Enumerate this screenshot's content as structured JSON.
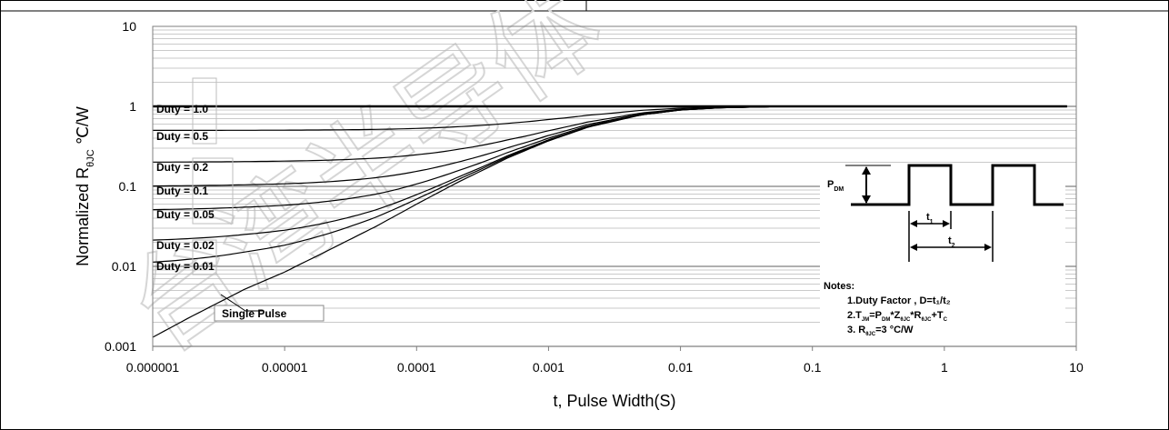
{
  "chart_data": {
    "type": "line",
    "xscale": "log",
    "yscale": "log",
    "xlim": [
      1e-06,
      10
    ],
    "ylim": [
      0.001,
      10
    ],
    "xlabel": "t, Pulse Width(S)",
    "ylabel_main": "Normalized R",
    "ylabel_sub": "θJC",
    "ylabel_unit": " ℃/W",
    "x_tick_labels": [
      "0.000001",
      "0.00001",
      "0.0001",
      "0.001",
      "0.01",
      "0.1",
      "1",
      "10"
    ],
    "y_tick_labels": [
      "0.001",
      "0.01",
      "0.1",
      "1",
      "10"
    ],
    "grid": "horizontal minor + major",
    "series": [
      {
        "name": "Duty = 1.0",
        "label": "Duty = 1.0",
        "d": 1.0
      },
      {
        "name": "Duty = 0.5",
        "label": "Duty = 0.5",
        "d": 0.5
      },
      {
        "name": "Duty = 0.2",
        "label": "Duty = 0.2",
        "d": 0.2
      },
      {
        "name": "Duty = 0.1",
        "label": "Duty = 0.1",
        "d": 0.1
      },
      {
        "name": "Duty = 0.05",
        "label": "Duty = 0.05",
        "d": 0.05
      },
      {
        "name": "Duty = 0.02",
        "label": "Duty = 0.02",
        "d": 0.02
      },
      {
        "name": "Duty = 0.01",
        "label": "Duty = 0.01",
        "d": 0.01
      },
      {
        "name": "Single Pulse",
        "label": "Single Pulse",
        "d": 0
      }
    ],
    "x": [
      1e-06,
      2e-06,
      5e-06,
      1e-05,
      2e-05,
      5e-05,
      0.0001,
      0.0002,
      0.0005,
      0.001,
      0.002,
      0.005,
      0.01,
      0.02,
      0.05,
      0.1,
      1,
      10
    ],
    "single_pulse_zth": [
      0.0013,
      0.0024,
      0.0052,
      0.0085,
      0.015,
      0.032,
      0.06,
      0.11,
      0.23,
      0.37,
      0.55,
      0.78,
      0.9,
      0.96,
      0.99,
      1.0,
      1.0,
      1.0
    ],
    "inset": {
      "pdm_label": "P",
      "pdm_sub": "DM",
      "t1_label": "t",
      "t1_sub": "1",
      "t2_label": "t",
      "t2_sub": "2",
      "notes_title": "Notes:",
      "note1": "1.Duty Factor , D=t₁/t₂",
      "note2": "2.T",
      "note2_sub": "JM",
      "note2_rest": "=P",
      "note2_sub2": "DM",
      "note2_rest2": "*Z",
      "note2_sub3": "θJC",
      "note2_rest3": "*R",
      "note2_sub4": "θJC",
      "note2_rest4": "+T",
      "note2_sub5": "C",
      "note3": "3. R",
      "note3_sub": "θJC",
      "note3_rest": "=3 °C/W"
    },
    "watermark": "台湾半导体（无锡",
    "colors": {
      "line": "#000000",
      "grid_major": "#7f7f7f",
      "grid_minor": "#b8b8b8",
      "label_box": "#bdbdbd"
    }
  }
}
